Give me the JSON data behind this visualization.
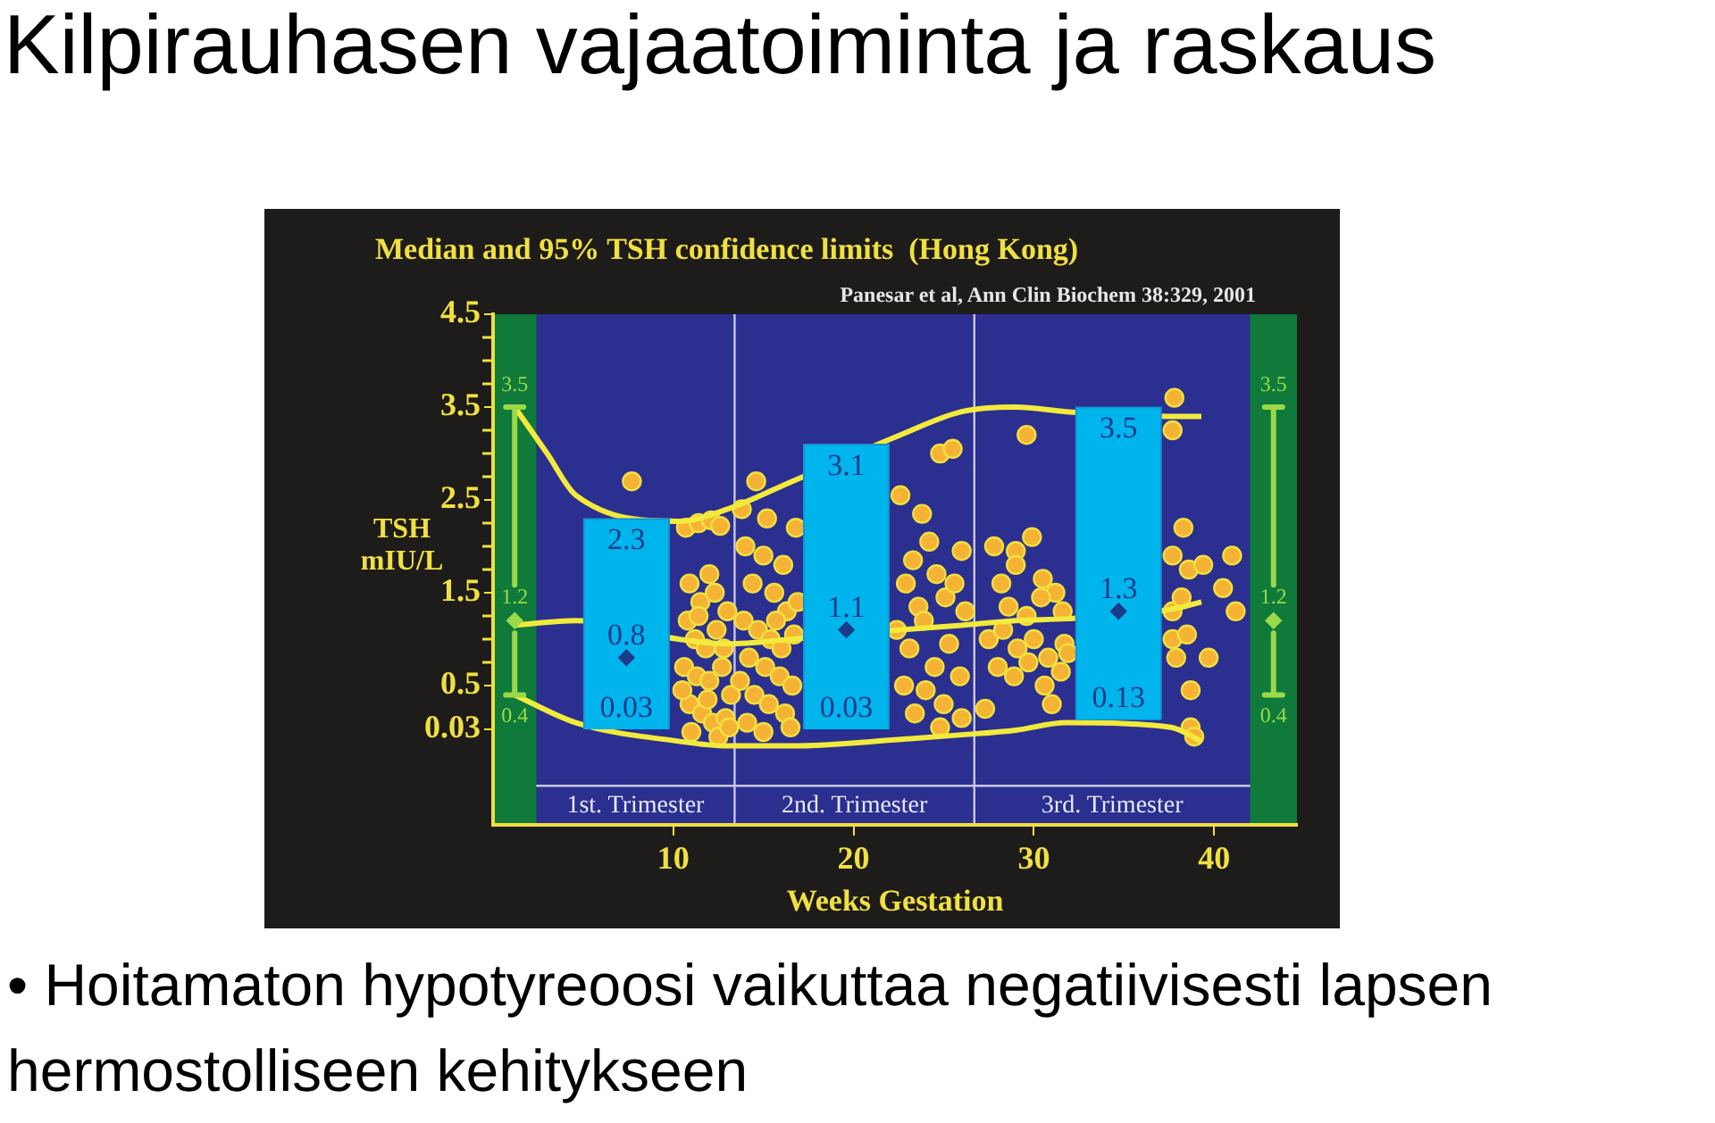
{
  "chart_data": {
    "type": "scatter",
    "title": "Kilpirauhasen vajaatoiminta ja raskaus",
    "subtitle": "Median and 95% TSH confidence limits  (Hong Kong)",
    "xlabel": "Weeks Gestation",
    "ylabel": "TSH mIU/L",
    "annotations": [
      "Panesar et al, Ann Clin Biochem 38:329, 2001",
      "• Hoitamaton hypotyreoosi vaikuttaa negatiivisesti lapsen hermostolliseen kehitykseen",
      "1st. Trimester",
      "2nd. Trimester",
      "3rd. Trimester",
      {
        "text": "0.03",
        "x": 7.4,
        "y": 0.03
      },
      {
        "text": "0.03",
        "x": 19.6,
        "y": 0.03
      },
      {
        "text": "0.13",
        "x": 34.7,
        "y": 0.13
      },
      {
        "text": "3.5",
        "x": 1.2,
        "y": 3.5
      },
      {
        "text": "1.2",
        "x": 1.2,
        "y": 1.2
      },
      {
        "text": "0.4",
        "x": 1.2,
        "y": 0.4
      },
      {
        "text": "3.5",
        "x": 43.3,
        "y": 3.5
      },
      {
        "text": "1.2",
        "x": 43.3,
        "y": 1.2
      },
      {
        "text": "0.4",
        "x": 43.3,
        "y": 0.4
      }
    ],
    "xlim": [
      0,
      44.6
    ],
    "xticks": [
      10,
      20,
      30,
      40
    ],
    "ylim": [
      -1,
      4.5
    ],
    "yticks": [
      0.03,
      0.5,
      {
        "value": 0.75,
        "label": null
      },
      {
        "value": 1,
        "label": null
      },
      {
        "value": 1.25,
        "label": null
      },
      1.5,
      {
        "value": 1.75,
        "label": null
      },
      {
        "value": 2,
        "label": null
      },
      {
        "value": 2.25,
        "label": null
      },
      2.5,
      {
        "value": 2.75,
        "label": null
      },
      {
        "value": 3,
        "label": null
      },
      {
        "value": 3.25,
        "label": null
      },
      3.5,
      {
        "value": 3.75,
        "label": null
      },
      {
        "value": 4,
        "label": null
      },
      {
        "value": 4.25,
        "label": null
      },
      4.5
    ],
    "grid": false,
    "legend": false,
    "bands": [
      {
        "axis": "x",
        "from": 0,
        "to": 2.4,
        "color": "#0f7a3a"
      },
      {
        "axis": "x",
        "from": 42,
        "to": 44.6,
        "color": "#0f7a3a"
      }
    ],
    "ref_lines": [
      {
        "axis": "y",
        "value": -0.58,
        "color": "#c8c8f0"
      },
      {
        "axis": "x",
        "value": 13.4,
        "color": "#c8c8f0"
      },
      {
        "axis": "x",
        "value": 26.7,
        "color": "#c8c8f0"
      }
    ],
    "series": [
      {
        "color": "#f5b335",
        "marker": "circle",
        "x": [
          7.7,
          10.7,
          11.4,
          12.1,
          12.6,
          10.9,
          11.5,
          12.3,
          10.8,
          11.2,
          11.8,
          12.4,
          13.0,
          10.6,
          11.3,
          12.0,
          12.7,
          13.2,
          10.9,
          11.6,
          12.2,
          12.9,
          11.0,
          12.5,
          13.1,
          10.5,
          11.9,
          12.8,
          11.4,
          12.0,
          13.8,
          14.6,
          15.2,
          14.0,
          15.0,
          16.1,
          16.8,
          14.4,
          15.6,
          16.3,
          13.9,
          14.7,
          15.4,
          16.0,
          16.7,
          14.2,
          15.1,
          15.9,
          16.6,
          14.5,
          15.3,
          16.2,
          14.1,
          15.0,
          16.5,
          13.7,
          16.9,
          15.7,
          22.6,
          23.3,
          23.8,
          24.2,
          22.9,
          23.6,
          24.6,
          25.1,
          25.6,
          26.0,
          22.4,
          23.1,
          23.9,
          24.5,
          25.3,
          26.2,
          22.8,
          24.0,
          25.0,
          25.9,
          23.4,
          24.8,
          26.0,
          24.8,
          25.5,
          29.6,
          27.8,
          29.9,
          29.0,
          28.2,
          29.0,
          30.5,
          31.2,
          28.6,
          29.6,
          30.4,
          31.6,
          27.5,
          28.3,
          29.1,
          30.0,
          30.8,
          31.7,
          28.0,
          28.9,
          29.7,
          30.6,
          31.5,
          31.9,
          27.3,
          31.0,
          37.8,
          37.7,
          38.3,
          37.7,
          38.6,
          39.4,
          41.0,
          40.5,
          41.2,
          37.7,
          38.2,
          37.7,
          38.5,
          39.7,
          37.9,
          38.7,
          38.7,
          38.9
        ],
        "values": [
          2.7,
          2.2,
          2.25,
          2.28,
          2.22,
          1.6,
          1.4,
          1.5,
          1.2,
          1.0,
          0.9,
          1.1,
          1.3,
          0.7,
          0.6,
          0.55,
          0.7,
          0.4,
          0.3,
          0.2,
          0.1,
          0.15,
          0.0,
          -0.05,
          0.05,
          0.45,
          0.35,
          0.9,
          1.25,
          1.7,
          2.4,
          2.7,
          2.3,
          2.0,
          1.9,
          1.8,
          2.2,
          1.6,
          1.5,
          1.3,
          1.2,
          1.1,
          1.0,
          0.9,
          1.05,
          0.8,
          0.7,
          0.6,
          0.5,
          0.4,
          0.3,
          0.2,
          0.1,
          0.0,
          0.05,
          0.55,
          1.4,
          1.2,
          2.55,
          1.85,
          2.35,
          2.05,
          1.6,
          1.35,
          1.7,
          1.45,
          1.6,
          1.95,
          1.1,
          0.9,
          1.2,
          0.7,
          0.95,
          1.3,
          0.5,
          0.45,
          0.3,
          0.6,
          0.2,
          0.05,
          0.15,
          3.0,
          3.05,
          3.2,
          2.0,
          2.1,
          1.95,
          1.6,
          1.8,
          1.65,
          1.5,
          1.35,
          1.25,
          1.45,
          1.3,
          1.0,
          1.1,
          0.9,
          1.0,
          0.8,
          0.95,
          0.7,
          0.6,
          0.75,
          0.5,
          0.65,
          0.85,
          0.25,
          0.3,
          3.6,
          3.25,
          2.2,
          1.9,
          1.75,
          1.8,
          1.9,
          1.55,
          1.3,
          1.3,
          1.45,
          1.0,
          1.05,
          0.8,
          0.8,
          0.45,
          0.05,
          -0.05
        ]
      },
      {
        "type": "line",
        "color": "#f2ea3c",
        "marker": "none",
        "x": [
          1.2,
          3,
          4.6,
          10.3,
          13,
          16.6,
          22.6,
          26,
          29,
          31.8,
          37.6,
          39.3
        ],
        "values": [
          3.5,
          3.0,
          2.55,
          2.27,
          2.4,
          2.7,
          3.2,
          3.45,
          3.5,
          3.45,
          3.4,
          3.4
        ]
      },
      {
        "type": "line",
        "color": "#f2ea3c",
        "marker": "none",
        "x": [
          1.2,
          4.6,
          10.3,
          13,
          16.6,
          22.6,
          26,
          29,
          31.8,
          37.6,
          39.3
        ],
        "values": [
          1.15,
          1.2,
          1.0,
          0.95,
          1.0,
          1.1,
          1.15,
          1.2,
          1.22,
          1.32,
          1.4
        ]
      },
      {
        "type": "line",
        "color": "#f2ea3c",
        "marker": "none",
        "x": [
          1.2,
          4.6,
          10.3,
          13,
          16.6,
          22.6,
          26,
          29,
          31.8,
          37.6,
          39.3
        ],
        "values": [
          0.4,
          0.1,
          -0.1,
          -0.15,
          -0.15,
          -0.08,
          -0.03,
          0.02,
          0.1,
          0.05,
          -0.1
        ]
      },
      {
        "type": "bar",
        "color": "#00b4ec",
        "x": [
          7.4,
          19.6,
          34.7
        ],
        "base": [
          0.03,
          0.03,
          0.13
        ],
        "values": [
          2.27,
          3.07,
          3.37
        ],
        "value_labels": [
          "2.3",
          "3.1",
          "3.5"
        ]
      },
      {
        "type": "scatter",
        "color": "#1b3a8c",
        "marker": "diamond",
        "x": [
          7.4,
          19.6,
          34.7
        ],
        "values": [
          0.8,
          1.1,
          1.3
        ],
        "value_labels": [
          "0.8",
          "1.1",
          "1.3"
        ]
      },
      {
        "type": "scatter",
        "color": "#9ad94a",
        "marker": "diamond",
        "x": [
          1.2,
          43.3
        ],
        "values": [
          1.2,
          1.2
        ],
        "errors": [
          [
            0.4,
            3.5
          ],
          [
            0.4,
            3.5
          ]
        ]
      }
    ]
  }
}
